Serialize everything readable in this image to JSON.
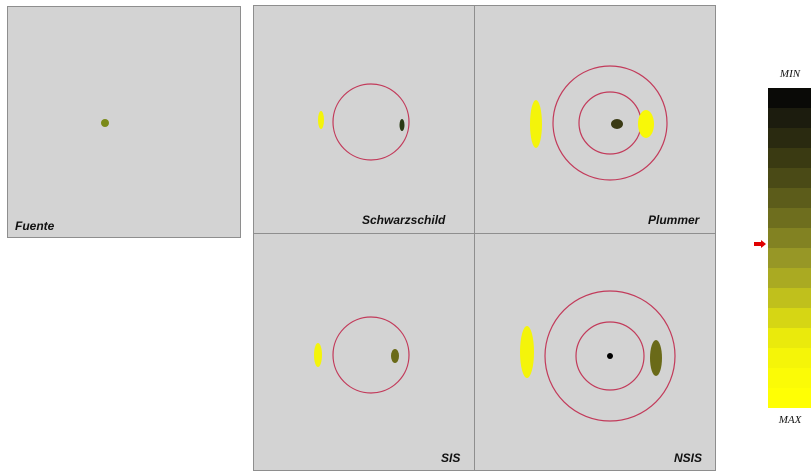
{
  "panels": {
    "fuente": {
      "label": "Fuente"
    },
    "schwarzschild": {
      "label": "Schwarzschild"
    },
    "plummer": {
      "label": "Plummer"
    },
    "sis": {
      "label": "SIS"
    },
    "nsis": {
      "label": "NSIS"
    }
  },
  "colorscale": {
    "min_label": "MIN",
    "max_label": "MAX",
    "colors": [
      "#0a0a07",
      "#1c1c0e",
      "#2a2a10",
      "#3a3a12",
      "#4a4a16",
      "#5c5c1a",
      "#6e6e1e",
      "#828222",
      "#979726",
      "#aaaa22",
      "#c0c01c",
      "#d6d614",
      "#eaea0c",
      "#f5f508",
      "#fbfb06",
      "#ffff04"
    ]
  },
  "indicator_color": "#e00000",
  "ring_color": "#c23a5a",
  "image_colors": {
    "bright": "#f4f40a",
    "olive": "#8a8a1c",
    "dark": "#3a3a14",
    "black": "#000000"
  }
}
